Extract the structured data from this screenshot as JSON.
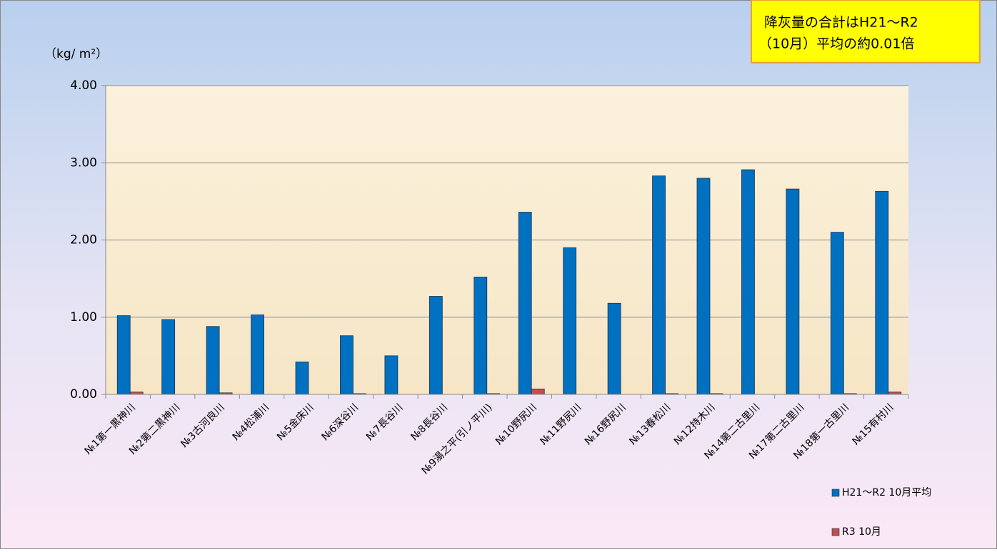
{
  "chart_data": {
    "type": "bar",
    "y_label": "（kg/ m²）",
    "annotation_lines": [
      "降灰量の合計はH21～R2",
      "（10月）平均の約0.01倍"
    ],
    "categories": [
      "№1第一黒神川",
      "№2第二黒神川",
      "№3古河良川",
      "№4松浦川",
      "№5金床川",
      "№6深谷川",
      "№7長谷川",
      "№8長谷川",
      "№9湯之平(引ノ平川)",
      "№10野尻川",
      "№11野尻川",
      "№16野尻川",
      "№13春松川",
      "№12持木川",
      "№14第二古里川",
      "№17第二古里川",
      "№18第一古里川",
      "№15有村川"
    ],
    "series": [
      {
        "name": "H21～R2  10月平均",
        "color": "#0070c0",
        "values": [
          1.02,
          0.97,
          0.88,
          1.03,
          0.42,
          0.76,
          0.5,
          1.27,
          1.52,
          2.36,
          1.9,
          1.18,
          2.83,
          2.8,
          2.91,
          2.66,
          2.1,
          2.63
        ]
      },
      {
        "name": "R3 10月",
        "color": "#c0504d",
        "values": [
          0.03,
          0,
          0.02,
          0,
          0,
          0.01,
          0,
          0,
          0.01,
          0.07,
          0,
          0,
          0.01,
          0.01,
          0,
          0,
          0.01,
          0.03
        ]
      }
    ],
    "ylim": [
      0,
      4
    ],
    "yticks": [
      {
        "value": 0,
        "label": "0.00"
      },
      {
        "value": 1,
        "label": "1.00"
      },
      {
        "value": 2,
        "label": "2.00"
      },
      {
        "value": 3,
        "label": "3.00"
      },
      {
        "value": 4,
        "label": "4.00"
      }
    ],
    "grid": true,
    "legend": "bottom-right"
  }
}
